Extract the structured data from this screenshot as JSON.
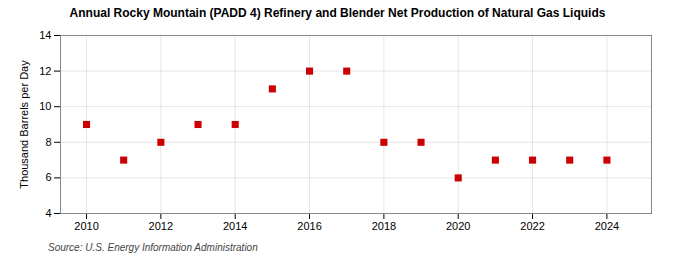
{
  "chart_data": {
    "type": "scatter",
    "title": "Annual Rocky Mountain (PADD 4) Refinery and Blender Net Production of Natural Gas Liquids",
    "ylabel": "Thousand Barrels per Day",
    "source": "Source: U.S. Energy Information Administration",
    "x": [
      2010,
      2011,
      2012,
      2013,
      2014,
      2015,
      2016,
      2017,
      2018,
      2019,
      2020,
      2021,
      2022,
      2023,
      2024
    ],
    "values": [
      9,
      7,
      8,
      9,
      9,
      11,
      12,
      12,
      8,
      8,
      6,
      7,
      7,
      7,
      7
    ],
    "color": "#cc0000",
    "marker": "square",
    "xlim": [
      2009.3,
      2025.2
    ],
    "ylim": [
      4,
      14
    ],
    "xticks": [
      2010,
      2012,
      2014,
      2016,
      2018,
      2020,
      2022,
      2024
    ],
    "yticks": [
      4,
      6,
      8,
      10,
      12,
      14
    ],
    "grid": true
  }
}
